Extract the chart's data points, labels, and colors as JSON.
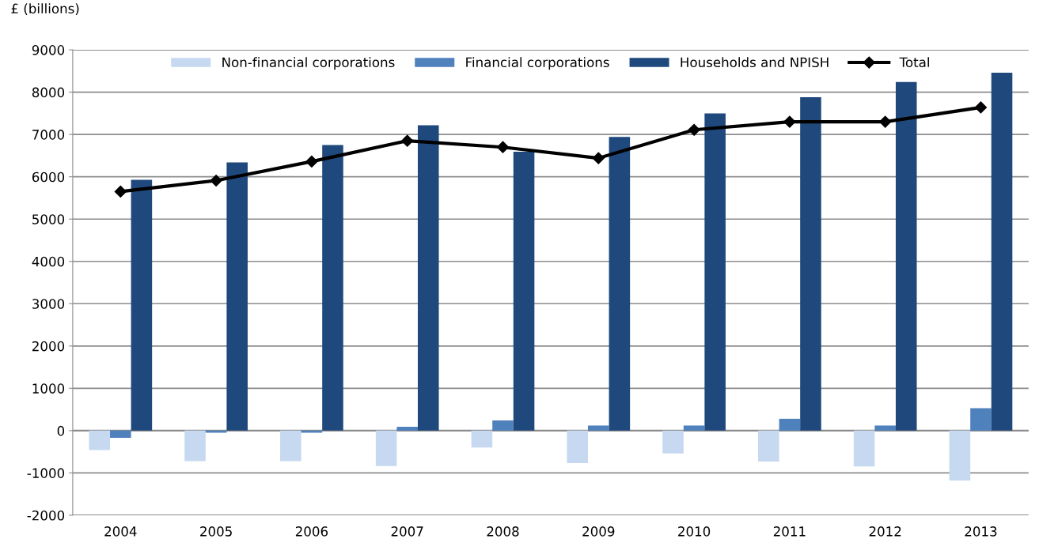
{
  "chart_data": {
    "type": "bar",
    "ylabel": "£ (billions)",
    "categories": [
      "2004",
      "2005",
      "2006",
      "2007",
      "2008",
      "2009",
      "2010",
      "2011",
      "2012",
      "2013"
    ],
    "series": [
      {
        "name": "Non-financial corporations",
        "color": "#c6d9f1",
        "values": [
          -460,
          -720,
          -720,
          -840,
          -400,
          -770,
          -540,
          -730,
          -850,
          -1180
        ]
      },
      {
        "name": "Financial corporations",
        "color": "#4f81bd",
        "values": [
          -170,
          -50,
          -50,
          90,
          240,
          120,
          120,
          280,
          120,
          530
        ]
      },
      {
        "name": "Households and NPISH",
        "color": "#1f497d",
        "values": [
          5930,
          6340,
          6750,
          7220,
          6590,
          6940,
          7500,
          7880,
          8240,
          8460
        ]
      },
      {
        "name": "Total",
        "type": "line",
        "color": "#000000",
        "marker": "diamond",
        "values": [
          5650,
          5910,
          6360,
          6850,
          6700,
          6440,
          7110,
          7300,
          7300,
          7640
        ]
      }
    ],
    "ylim": [
      -2000,
      9000
    ],
    "yticks": [
      -2000,
      -1000,
      0,
      1000,
      2000,
      3000,
      4000,
      5000,
      6000,
      7000,
      8000,
      9000
    ],
    "grid": "y",
    "legend": "top"
  }
}
